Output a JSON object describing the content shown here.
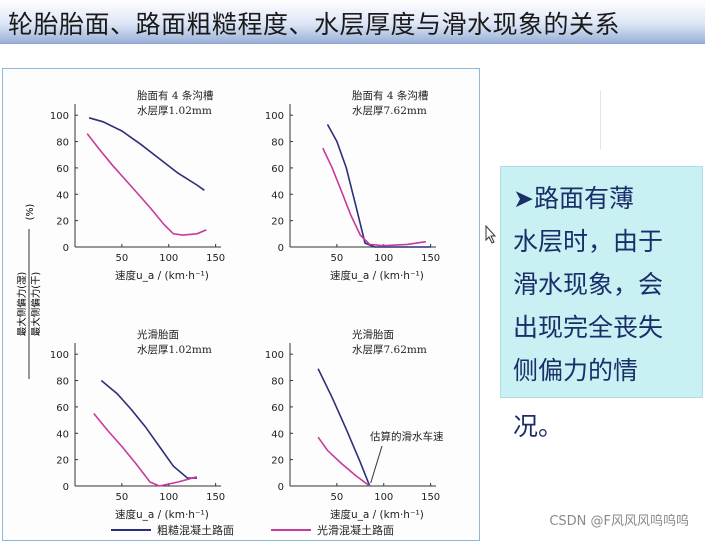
{
  "slide": {
    "title": "轮胎胎面、路面粗糙程度、水层厚度与滑水现象的关系",
    "note_lines": [
      "➤路面有薄",
      "水层时，由于",
      "滑水现象，会",
      "出现完全丧失",
      "侧偏力的情",
      "况。"
    ],
    "watermark": "CSDN @F风风风呜呜呜"
  },
  "colors": {
    "rough": "#2d2f7a",
    "smooth": "#c83a9c",
    "note_bg": "#c9f1f3"
  },
  "chart_data": [
    {
      "type": "line",
      "annotation_lines": [
        "胎面有 4 条沟槽",
        "水层厚1.02mm"
      ],
      "xlabel": "速度u_a / (km·h⁻¹)",
      "ylabel": "最大侧偏力(湿)/最大侧偏力(干) (%)",
      "xlim": [
        0,
        160
      ],
      "ylim": [
        0,
        110
      ],
      "xticks": [
        50,
        100,
        150
      ],
      "yticks": [
        20,
        40,
        60,
        80,
        100
      ],
      "series": [
        {
          "name": "粗糙混凝土路面",
          "x": [
            15,
            30,
            50,
            70,
            90,
            110,
            130,
            138
          ],
          "y": [
            98,
            95,
            88,
            78,
            67,
            56,
            47,
            43
          ]
        },
        {
          "name": "光滑混凝土路面",
          "x": [
            13,
            25,
            40,
            60,
            80,
            95,
            105,
            115,
            130,
            140
          ],
          "y": [
            86,
            75,
            62,
            46,
            30,
            17,
            10,
            9,
            10,
            13
          ]
        }
      ]
    },
    {
      "type": "line",
      "annotation_lines": [
        "胎面有 4 条沟槽",
        "水层厚7.62mm"
      ],
      "xlabel": "速度u_a / (km·h⁻¹)",
      "xlim": [
        0,
        160
      ],
      "ylim": [
        0,
        110
      ],
      "xticks": [
        50,
        100,
        150
      ],
      "yticks": [
        20,
        40,
        60,
        80,
        100
      ],
      "series": [
        {
          "name": "粗糙混凝土路面",
          "x": [
            40,
            50,
            60,
            70,
            80,
            90,
            150
          ],
          "y": [
            93,
            80,
            60,
            32,
            3,
            0,
            0
          ]
        },
        {
          "name": "光滑混凝土路面",
          "x": [
            35,
            45,
            55,
            65,
            75,
            85,
            100,
            125,
            145
          ],
          "y": [
            75,
            60,
            42,
            24,
            9,
            2,
            1,
            2,
            4
          ]
        }
      ]
    },
    {
      "type": "line",
      "annotation_lines": [
        "光滑胎面",
        "水层厚1.02mm"
      ],
      "xlabel": "速度u_a / (km·h⁻¹)",
      "ylabel": "最大侧偏力(湿)/最大侧偏力(干) (%)",
      "xlim": [
        0,
        160
      ],
      "ylim": [
        0,
        110
      ],
      "xticks": [
        50,
        100,
        150
      ],
      "yticks": [
        20,
        40,
        60,
        80,
        100
      ],
      "series": [
        {
          "name": "粗糙混凝土路面",
          "x": [
            28,
            45,
            60,
            75,
            90,
            105,
            120,
            130
          ],
          "y": [
            80,
            70,
            58,
            45,
            30,
            15,
            6,
            6
          ]
        },
        {
          "name": "光滑混凝土路面",
          "x": [
            20,
            35,
            50,
            65,
            80,
            90,
            110,
            130
          ],
          "y": [
            55,
            42,
            30,
            17,
            3,
            0,
            3,
            7
          ]
        }
      ]
    },
    {
      "type": "line",
      "annotation_lines": [
        "光滑胎面",
        "水层厚7.62mm"
      ],
      "annotation": "估算的滑水车速",
      "xlabel": "速度u_a / (km·h⁻¹)",
      "xlim": [
        0,
        160
      ],
      "ylim": [
        0,
        110
      ],
      "xticks": [
        50,
        100,
        150
      ],
      "yticks": [
        20,
        40,
        60,
        80,
        100
      ],
      "series": [
        {
          "name": "粗糙混凝土路面",
          "x": [
            30,
            45,
            60,
            75,
            85
          ],
          "y": [
            89,
            67,
            43,
            18,
            0
          ]
        },
        {
          "name": "光滑混凝土路面",
          "x": [
            30,
            40,
            55,
            70,
            85
          ],
          "y": [
            37,
            27,
            17,
            8,
            0
          ]
        }
      ]
    }
  ],
  "legend": [
    {
      "label": "粗糙混凝土路面",
      "color": "#2d2f7a"
    },
    {
      "label": "光滑混凝土路面",
      "color": "#c83a9c"
    }
  ]
}
